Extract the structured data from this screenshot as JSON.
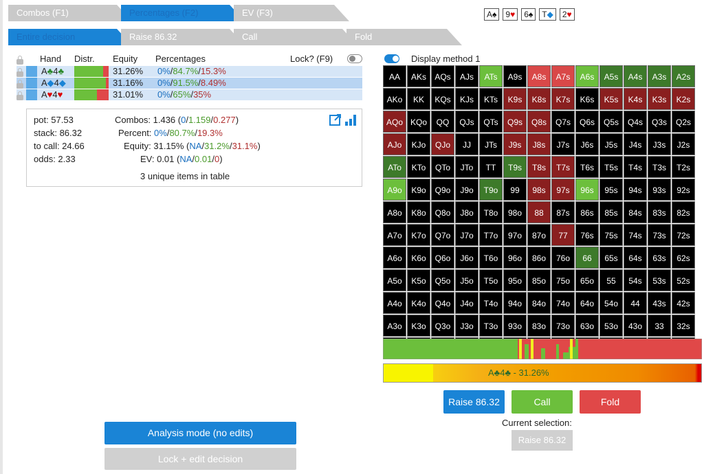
{
  "tabs_top": [
    {
      "label": "Combos (F1)"
    },
    {
      "label": "Percentages (F2)"
    },
    {
      "label": "EV (F3)"
    }
  ],
  "tabs_action": [
    {
      "label": "Entire decision"
    },
    {
      "label": "Raise 86.32"
    },
    {
      "label": "Call"
    },
    {
      "label": "Fold"
    }
  ],
  "board": [
    {
      "rank": "A",
      "suit": "♠",
      "color": "#000"
    },
    {
      "rank": "9",
      "suit": "♥",
      "color": "#d00"
    },
    {
      "rank": "6",
      "suit": "♠",
      "color": "#000"
    },
    {
      "rank": "T",
      "suit": "◆",
      "color": "#1a84d6"
    },
    {
      "rank": "2",
      "suit": "♥",
      "color": "#d00"
    }
  ],
  "table": {
    "headers": {
      "hand": "Hand",
      "distr": "Distr.",
      "equity": "Equity",
      "percentages": "Percentages",
      "lock": "Lock? (F9)"
    },
    "rows": [
      {
        "rank1": "A",
        "suit1": "♣",
        "rank2": "4",
        "suit2": "♣",
        "suit_color": "#2d8a2d",
        "equity": "31.26%",
        "p1": "0%",
        "p2": "84.7%",
        "p3": "15.3%",
        "split": [
          0,
          84.7,
          15.3
        ]
      },
      {
        "rank1": "A",
        "suit1": "◆",
        "rank2": "4",
        "suit2": "◆",
        "suit_color": "#1a84d6",
        "equity": "31.16%",
        "p1": "0%",
        "p2": "91.5%",
        "p3": "8.49%",
        "split": [
          0,
          91.5,
          8.49
        ]
      },
      {
        "rank1": "A",
        "suit1": "♥",
        "rank2": "4",
        "suit2": "♥",
        "suit_color": "#d00",
        "equity": "31.01%",
        "p1": "0%",
        "p2": "65%",
        "p3": "35%",
        "split": [
          0,
          65,
          35
        ]
      }
    ]
  },
  "info": {
    "pot": "pot: 57.53",
    "stack": "stack: 86.32",
    "to_call": "to call: 24.66",
    "odds": "odds: 2.33",
    "combos_label": "Combos: 1.436 (",
    "combos_a": "0",
    "combos_b": "1.159",
    "combos_c": "0.277",
    "percent_label": "Percent: ",
    "percent_a": "0%",
    "percent_b": "80.7%",
    "percent_c": "19.3%",
    "equity_label": "Equity: 31.15% (",
    "equity_a": "NA",
    "equity_b": "31.2%",
    "equity_c": "31.1%",
    "ev_label": "EV: 0.01 (",
    "ev_a": "NA",
    "ev_b": "0.01",
    "ev_c": "0",
    "slash": "/",
    "close": ")",
    "unique": "3 unique items in table"
  },
  "display_method": "Display method 1",
  "colors": {
    "raise": "#1a84d6",
    "call": "#6cbf3c",
    "fold": "#e04848",
    "dark_red": "#8a1f1f",
    "dark_green": "#3d7a2a",
    "red": "#d94848",
    "green": "#6cbf3c"
  },
  "grid": [
    [
      [
        "AA",
        "k"
      ],
      [
        "AKs",
        "k"
      ],
      [
        "AQs",
        "k"
      ],
      [
        "AJs",
        "k"
      ],
      [
        "ATs",
        "g"
      ],
      [
        "A9s",
        "k"
      ],
      [
        "A8s",
        "r"
      ],
      [
        "A7s",
        "r"
      ],
      [
        "A6s",
        "g"
      ],
      [
        "A5s",
        "dg"
      ],
      [
        "A4s",
        "dg"
      ],
      [
        "A3s",
        "dg"
      ],
      [
        "A2s",
        "dg"
      ]
    ],
    [
      [
        "AKo",
        "k"
      ],
      [
        "KK",
        "k"
      ],
      [
        "KQs",
        "k"
      ],
      [
        "KJs",
        "k"
      ],
      [
        "KTs",
        "k"
      ],
      [
        "K9s",
        "dr"
      ],
      [
        "K8s",
        "dr"
      ],
      [
        "K7s",
        "dr"
      ],
      [
        "K6s",
        "k"
      ],
      [
        "K5s",
        "dr"
      ],
      [
        "K4s",
        "dr"
      ],
      [
        "K3s",
        "dr"
      ],
      [
        "K2s",
        "dr"
      ]
    ],
    [
      [
        "AQo",
        "dr"
      ],
      [
        "KQo",
        "k"
      ],
      [
        "QQ",
        "k"
      ],
      [
        "QJs",
        "k"
      ],
      [
        "QTs",
        "k"
      ],
      [
        "Q9s",
        "dr"
      ],
      [
        "Q8s",
        "dr"
      ],
      [
        "Q7s",
        "k"
      ],
      [
        "Q6s",
        "k"
      ],
      [
        "Q5s",
        "k"
      ],
      [
        "Q4s",
        "k"
      ],
      [
        "Q3s",
        "k"
      ],
      [
        "Q2s",
        "k"
      ]
    ],
    [
      [
        "AJo",
        "dr"
      ],
      [
        "KJo",
        "k"
      ],
      [
        "QJo",
        "dr"
      ],
      [
        "JJ",
        "k"
      ],
      [
        "JTs",
        "k"
      ],
      [
        "J9s",
        "dr"
      ],
      [
        "J8s",
        "dr"
      ],
      [
        "J7s",
        "k"
      ],
      [
        "J6s",
        "k"
      ],
      [
        "J5s",
        "k"
      ],
      [
        "J4s",
        "k"
      ],
      [
        "J3s",
        "k"
      ],
      [
        "J2s",
        "k"
      ]
    ],
    [
      [
        "ATo",
        "dg"
      ],
      [
        "KTo",
        "k"
      ],
      [
        "QTo",
        "k"
      ],
      [
        "JTo",
        "k"
      ],
      [
        "TT",
        "k"
      ],
      [
        "T9s",
        "dg"
      ],
      [
        "T8s",
        "dr"
      ],
      [
        "T7s",
        "dr"
      ],
      [
        "T6s",
        "k"
      ],
      [
        "T5s",
        "k"
      ],
      [
        "T4s",
        "k"
      ],
      [
        "T3s",
        "k"
      ],
      [
        "T2s",
        "k"
      ]
    ],
    [
      [
        "A9o",
        "g"
      ],
      [
        "K9o",
        "k"
      ],
      [
        "Q9o",
        "k"
      ],
      [
        "J9o",
        "k"
      ],
      [
        "T9o",
        "dg"
      ],
      [
        "99",
        "k"
      ],
      [
        "98s",
        "dr"
      ],
      [
        "97s",
        "dr"
      ],
      [
        "96s",
        "g"
      ],
      [
        "95s",
        "k"
      ],
      [
        "94s",
        "k"
      ],
      [
        "93s",
        "k"
      ],
      [
        "92s",
        "k"
      ]
    ],
    [
      [
        "A8o",
        "k"
      ],
      [
        "K8o",
        "k"
      ],
      [
        "Q8o",
        "k"
      ],
      [
        "J8o",
        "k"
      ],
      [
        "T8o",
        "k"
      ],
      [
        "98o",
        "k"
      ],
      [
        "88",
        "dr"
      ],
      [
        "87s",
        "k"
      ],
      [
        "86s",
        "k"
      ],
      [
        "85s",
        "k"
      ],
      [
        "84s",
        "k"
      ],
      [
        "83s",
        "k"
      ],
      [
        "82s",
        "k"
      ]
    ],
    [
      [
        "A7o",
        "k"
      ],
      [
        "K7o",
        "k"
      ],
      [
        "Q7o",
        "k"
      ],
      [
        "J7o",
        "k"
      ],
      [
        "T7o",
        "k"
      ],
      [
        "97o",
        "k"
      ],
      [
        "87o",
        "k"
      ],
      [
        "77",
        "dr"
      ],
      [
        "76s",
        "k"
      ],
      [
        "75s",
        "k"
      ],
      [
        "74s",
        "k"
      ],
      [
        "73s",
        "k"
      ],
      [
        "72s",
        "k"
      ]
    ],
    [
      [
        "A6o",
        "k"
      ],
      [
        "K6o",
        "k"
      ],
      [
        "Q6o",
        "k"
      ],
      [
        "J6o",
        "k"
      ],
      [
        "T6o",
        "k"
      ],
      [
        "96o",
        "k"
      ],
      [
        "86o",
        "k"
      ],
      [
        "76o",
        "k"
      ],
      [
        "66",
        "dg"
      ],
      [
        "65s",
        "k"
      ],
      [
        "64s",
        "k"
      ],
      [
        "63s",
        "k"
      ],
      [
        "62s",
        "k"
      ]
    ],
    [
      [
        "A5o",
        "k"
      ],
      [
        "K5o",
        "k"
      ],
      [
        "Q5o",
        "k"
      ],
      [
        "J5o",
        "k"
      ],
      [
        "T5o",
        "k"
      ],
      [
        "95o",
        "k"
      ],
      [
        "85o",
        "k"
      ],
      [
        "75o",
        "k"
      ],
      [
        "65o",
        "k"
      ],
      [
        "55",
        "k"
      ],
      [
        "54s",
        "k"
      ],
      [
        "53s",
        "k"
      ],
      [
        "52s",
        "k"
      ]
    ],
    [
      [
        "A4o",
        "k"
      ],
      [
        "K4o",
        "k"
      ],
      [
        "Q4o",
        "k"
      ],
      [
        "J4o",
        "k"
      ],
      [
        "T4o",
        "k"
      ],
      [
        "94o",
        "k"
      ],
      [
        "84o",
        "k"
      ],
      [
        "74o",
        "k"
      ],
      [
        "64o",
        "k"
      ],
      [
        "54o",
        "k"
      ],
      [
        "44",
        "k"
      ],
      [
        "43s",
        "k"
      ],
      [
        "42s",
        "k"
      ]
    ],
    [
      [
        "A3o",
        "k"
      ],
      [
        "K3o",
        "k"
      ],
      [
        "Q3o",
        "k"
      ],
      [
        "J3o",
        "k"
      ],
      [
        "T3o",
        "k"
      ],
      [
        "93o",
        "k"
      ],
      [
        "83o",
        "k"
      ],
      [
        "73o",
        "k"
      ],
      [
        "63o",
        "k"
      ],
      [
        "53o",
        "k"
      ],
      [
        "43o",
        "k"
      ],
      [
        "33",
        "k"
      ],
      [
        "32s",
        "k"
      ]
    ],
    [
      [
        "A2o",
        "k"
      ],
      [
        "K2o",
        "k"
      ],
      [
        "Q2o",
        "k"
      ],
      [
        "J2o",
        "k"
      ],
      [
        "T2o",
        "k"
      ],
      [
        "92o",
        "k"
      ],
      [
        "82o",
        "k"
      ],
      [
        "72o",
        "k"
      ],
      [
        "62o",
        "k"
      ],
      [
        "52o",
        "k"
      ],
      [
        "42o",
        "k"
      ],
      [
        "32o",
        "k"
      ],
      [
        "22",
        "k"
      ]
    ]
  ],
  "equity_bar": {
    "hand_rank1": "A",
    "hand_suit1": "♣",
    "hand_rank2": "4",
    "hand_suit2": "♣",
    "suffix": " - 31.26%"
  },
  "actions": {
    "raise": "Raise 86.32",
    "call": "Call",
    "fold": "Fold"
  },
  "current_selection": {
    "label": "Current selection:",
    "value": "Raise 86.32"
  },
  "bottom": {
    "analysis": "Analysis mode (no edits)",
    "lock_edit": "Lock + edit decision"
  }
}
